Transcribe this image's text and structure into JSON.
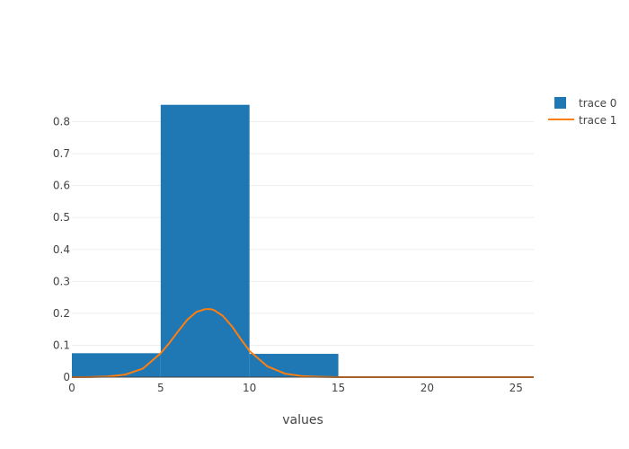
{
  "chart_data": {
    "type": "bar",
    "xlabel": "values",
    "ylabel": "",
    "xlim": [
      0,
      26
    ],
    "ylim": [
      0,
      0.9
    ],
    "x_ticks": [
      "0",
      "5",
      "10",
      "15",
      "20",
      "25"
    ],
    "y_ticks": [
      "0",
      "0.1",
      "0.2",
      "0.3",
      "0.4",
      "0.5",
      "0.6",
      "0.7",
      "0.8"
    ],
    "grid": true,
    "legend_position": "top-right",
    "series": [
      {
        "name": "trace 0",
        "type": "histogram",
        "color": "#1f77b4",
        "bins": [
          {
            "x0": 0,
            "x1": 5,
            "value": 0.075
          },
          {
            "x0": 5,
            "x1": 10,
            "value": 0.853
          },
          {
            "x0": 10,
            "x1": 15,
            "value": 0.073
          }
        ]
      },
      {
        "name": "trace 1",
        "type": "line",
        "color": "#ff7f0e",
        "x": [
          0,
          1,
          2,
          3,
          4,
          5,
          5.5,
          6,
          6.5,
          7,
          7.5,
          7.8,
          8,
          8.5,
          9,
          9.5,
          10,
          11,
          12,
          13,
          14,
          15,
          17,
          20,
          23,
          26
        ],
        "y": [
          0,
          0.0005,
          0.002,
          0.008,
          0.027,
          0.075,
          0.108,
          0.145,
          0.18,
          0.204,
          0.213,
          0.213,
          0.21,
          0.192,
          0.16,
          0.12,
          0.082,
          0.034,
          0.011,
          0.003,
          0.001,
          0,
          0,
          0,
          0,
          0
        ]
      }
    ]
  }
}
